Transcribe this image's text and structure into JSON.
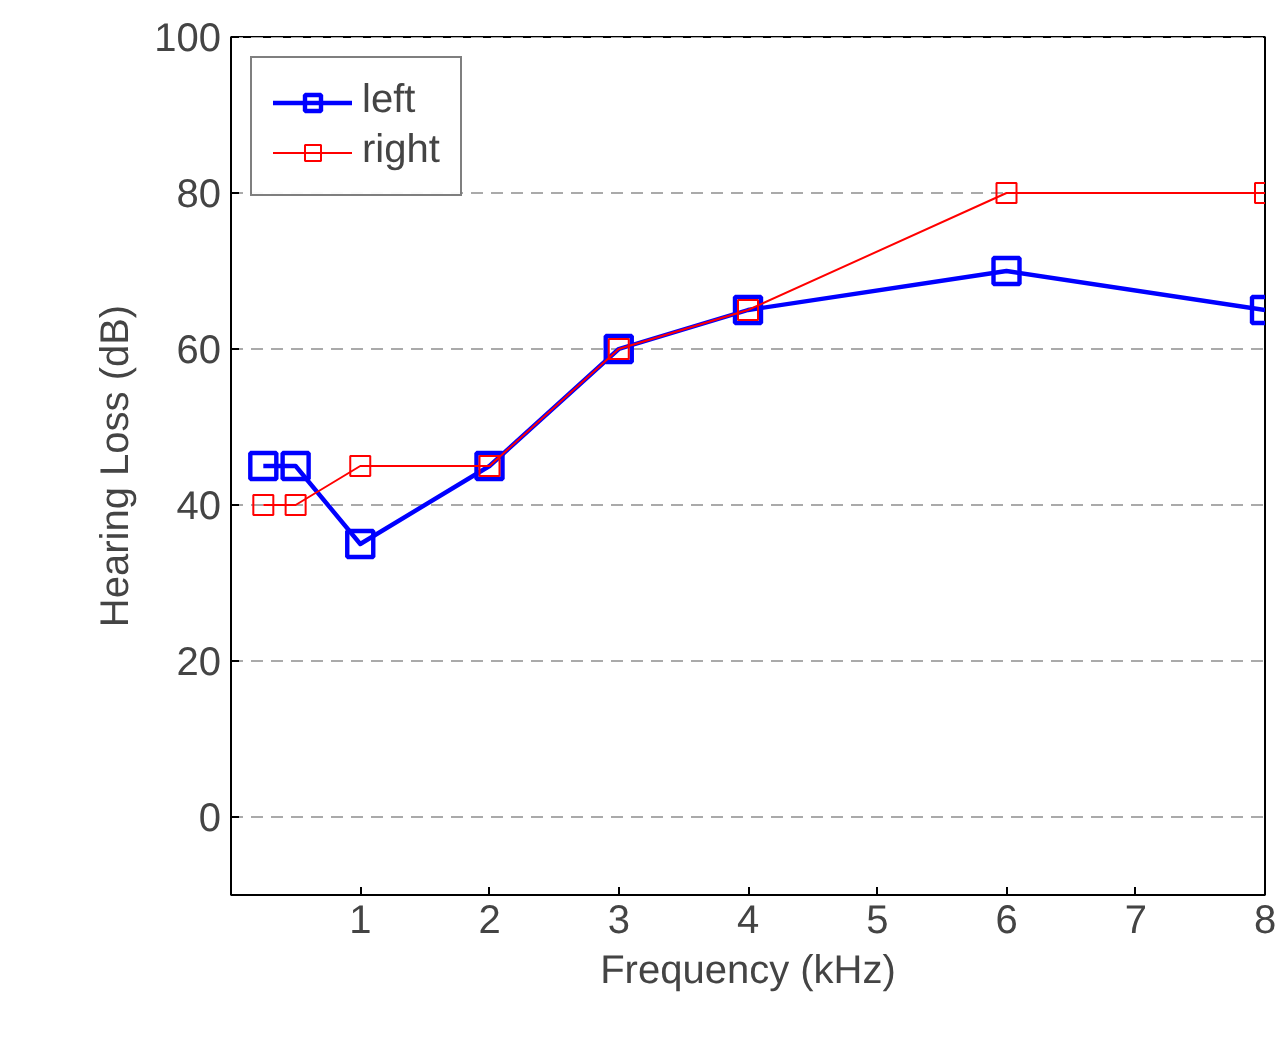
{
  "chart_data": {
    "type": "line",
    "xlabel": "Frequency (kHz)",
    "ylabel": "Hearing Loss (dB)",
    "x": [
      0.25,
      0.5,
      1,
      2,
      3,
      4,
      6,
      8
    ],
    "series": [
      {
        "name": "left",
        "color": "#0000ff",
        "values": [
          45,
          45,
          35,
          45,
          60,
          65,
          70,
          65
        ]
      },
      {
        "name": "right",
        "color": "#ff0000",
        "values": [
          40,
          40,
          45,
          45,
          60,
          65,
          80,
          80
        ]
      }
    ],
    "xlim": [
      0,
      8
    ],
    "ylim": [
      -10,
      100
    ],
    "xticks": [
      1,
      2,
      3,
      4,
      5,
      6,
      7,
      8
    ],
    "yticks": [
      0,
      20,
      40,
      60,
      80,
      100
    ],
    "grid": "y",
    "legend": "top left",
    "marker": "square",
    "line_style": "solid"
  }
}
